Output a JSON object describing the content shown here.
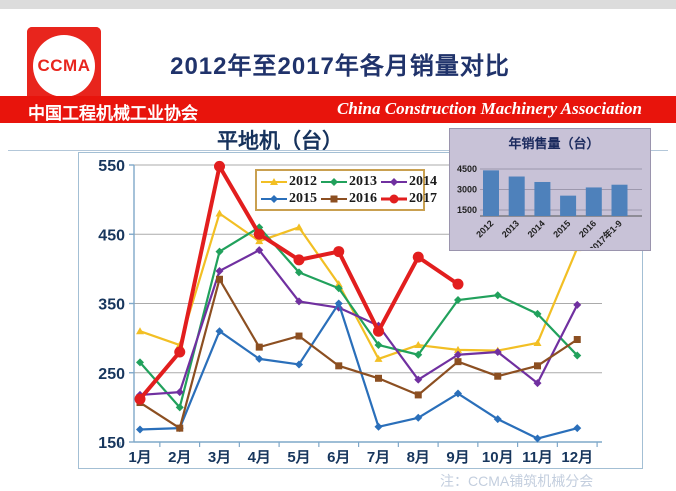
{
  "page": {
    "logo_text": "CCMA",
    "title": "2012年至2017年各月销量对比",
    "banner": {
      "cn": "中国工程机械工业协会",
      "en": "China Construction Machinery Association"
    },
    "footnote": "注：CCMA铺筑机械分会"
  },
  "colors": {
    "banner_red": "#e8140c",
    "logo_red": "#e8251d",
    "title_navy": "#20336b",
    "axis_text": "#17365d",
    "grid": "#ababab",
    "frame": "#a3bfd4",
    "legend_border": "#c9a050",
    "inset_bg": "#c8c2d7",
    "inset_bar": "#4e81bb"
  },
  "chart_data": [
    {
      "type": "line",
      "title": "平地机（台）",
      "x": [
        "1月",
        "2月",
        "3月",
        "4月",
        "5月",
        "6月",
        "7月",
        "8月",
        "9月",
        "10月",
        "11月",
        "12月"
      ],
      "ylim": [
        150,
        550
      ],
      "yticks": [
        150,
        250,
        350,
        450,
        550
      ],
      "grid": true,
      "legend_position": "top-center",
      "series": [
        {
          "name": "2012",
          "color": "#f2bf24",
          "marker": "triangle",
          "line_width": 2.2,
          "values": [
            310,
            290,
            480,
            440,
            460,
            378,
            270,
            290,
            283,
            282,
            293,
            430
          ]
        },
        {
          "name": "2013",
          "color": "#21a15c",
          "marker": "diamond",
          "line_width": 2.2,
          "values": [
            265,
            200,
            425,
            460,
            395,
            372,
            290,
            276,
            355,
            362,
            335,
            275
          ]
        },
        {
          "name": "2014",
          "color": "#7030a0",
          "marker": "diamond",
          "line_width": 2.2,
          "values": [
            218,
            222,
            397,
            427,
            353,
            344,
            318,
            240,
            276,
            280,
            235,
            348
          ]
        },
        {
          "name": "2015",
          "color": "#2a6fba",
          "marker": "diamond",
          "line_width": 2.2,
          "values": [
            168,
            170,
            310,
            270,
            262,
            350,
            172,
            185,
            220,
            183,
            155,
            170
          ]
        },
        {
          "name": "2016",
          "color": "#8c4f21",
          "marker": "square",
          "line_width": 2.2,
          "values": [
            207,
            170,
            385,
            287,
            303,
            260,
            242,
            218,
            266,
            245,
            260,
            298
          ]
        },
        {
          "name": "2017",
          "color": "#e21e1e",
          "marker": "circle",
          "line_width": 4,
          "values": [
            212,
            280,
            548,
            450,
            413,
            425,
            310,
            417,
            378,
            null,
            null,
            null
          ]
        }
      ]
    },
    {
      "type": "bar",
      "title": "年销售量（台）",
      "categories": [
        "2012",
        "2013",
        "2014",
        "2015",
        "2016",
        "2017年1-9"
      ],
      "values": [
        4400,
        3950,
        3550,
        2550,
        3150,
        3350
      ],
      "yticks": [
        1500,
        3000,
        4500
      ],
      "ylim": [
        1000,
        4800
      ],
      "bar_color": "#4e81bb"
    }
  ]
}
